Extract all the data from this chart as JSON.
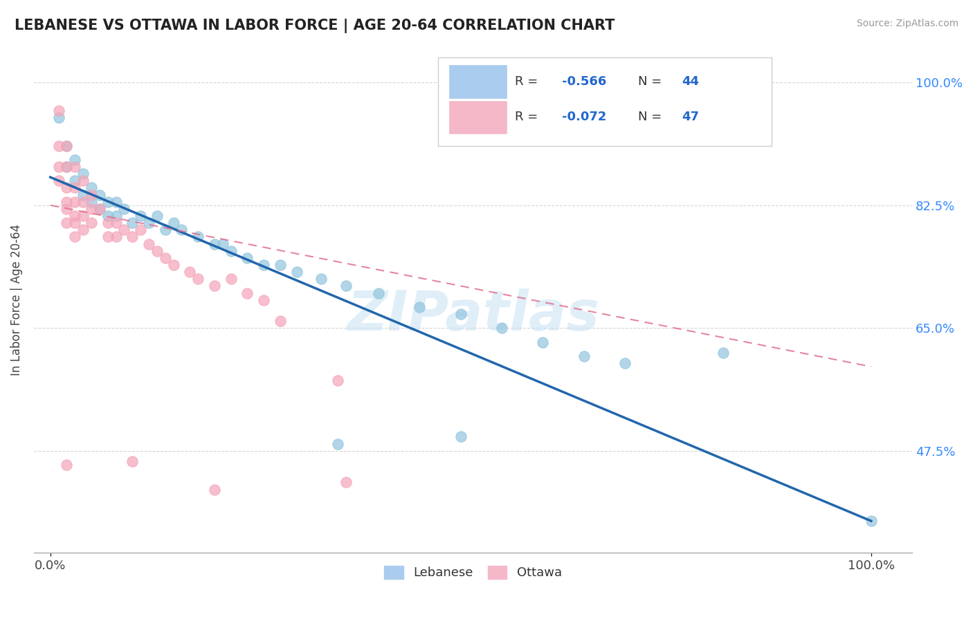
{
  "title": "LEBANESE VS OTTAWA IN LABOR FORCE | AGE 20-64 CORRELATION CHART",
  "source_text": "Source: ZipAtlas.com",
  "ylabel": "In Labor Force | Age 20-64",
  "legend_label_blue": "Lebanese",
  "legend_label_pink": "Ottawa",
  "blue_color": "#92c5de",
  "pink_color": "#f4a5b8",
  "blue_line_color": "#2166ac",
  "pink_line_color": "#e07090",
  "blue_scatter": [
    [
      0.01,
      0.95
    ],
    [
      0.02,
      0.91
    ],
    [
      0.02,
      0.88
    ],
    [
      0.03,
      0.89
    ],
    [
      0.03,
      0.86
    ],
    [
      0.04,
      0.87
    ],
    [
      0.04,
      0.84
    ],
    [
      0.05,
      0.85
    ],
    [
      0.05,
      0.83
    ],
    [
      0.06,
      0.84
    ],
    [
      0.06,
      0.82
    ],
    [
      0.07,
      0.83
    ],
    [
      0.07,
      0.81
    ],
    [
      0.08,
      0.83
    ],
    [
      0.08,
      0.81
    ],
    [
      0.09,
      0.82
    ],
    [
      0.1,
      0.8
    ],
    [
      0.11,
      0.81
    ],
    [
      0.12,
      0.8
    ],
    [
      0.13,
      0.81
    ],
    [
      0.14,
      0.79
    ],
    [
      0.15,
      0.8
    ],
    [
      0.16,
      0.79
    ],
    [
      0.18,
      0.78
    ],
    [
      0.2,
      0.77
    ],
    [
      0.21,
      0.77
    ],
    [
      0.22,
      0.76
    ],
    [
      0.24,
      0.75
    ],
    [
      0.26,
      0.74
    ],
    [
      0.28,
      0.74
    ],
    [
      0.3,
      0.73
    ],
    [
      0.33,
      0.72
    ],
    [
      0.36,
      0.71
    ],
    [
      0.4,
      0.7
    ],
    [
      0.45,
      0.68
    ],
    [
      0.5,
      0.67
    ],
    [
      0.55,
      0.65
    ],
    [
      0.6,
      0.63
    ],
    [
      0.65,
      0.61
    ],
    [
      0.7,
      0.6
    ],
    [
      0.82,
      0.615
    ],
    [
      0.35,
      0.485
    ],
    [
      0.5,
      0.495
    ],
    [
      1.0,
      0.375
    ]
  ],
  "pink_scatter": [
    [
      0.01,
      0.96
    ],
    [
      0.01,
      0.91
    ],
    [
      0.01,
      0.88
    ],
    [
      0.01,
      0.86
    ],
    [
      0.02,
      0.91
    ],
    [
      0.02,
      0.88
    ],
    [
      0.02,
      0.85
    ],
    [
      0.02,
      0.83
    ],
    [
      0.02,
      0.82
    ],
    [
      0.02,
      0.8
    ],
    [
      0.03,
      0.88
    ],
    [
      0.03,
      0.85
    ],
    [
      0.03,
      0.83
    ],
    [
      0.03,
      0.81
    ],
    [
      0.03,
      0.8
    ],
    [
      0.03,
      0.78
    ],
    [
      0.04,
      0.86
    ],
    [
      0.04,
      0.83
    ],
    [
      0.04,
      0.81
    ],
    [
      0.04,
      0.79
    ],
    [
      0.05,
      0.84
    ],
    [
      0.05,
      0.82
    ],
    [
      0.05,
      0.8
    ],
    [
      0.06,
      0.82
    ],
    [
      0.07,
      0.8
    ],
    [
      0.07,
      0.78
    ],
    [
      0.08,
      0.8
    ],
    [
      0.08,
      0.78
    ],
    [
      0.09,
      0.79
    ],
    [
      0.1,
      0.78
    ],
    [
      0.11,
      0.79
    ],
    [
      0.12,
      0.77
    ],
    [
      0.13,
      0.76
    ],
    [
      0.14,
      0.75
    ],
    [
      0.15,
      0.74
    ],
    [
      0.17,
      0.73
    ],
    [
      0.18,
      0.72
    ],
    [
      0.2,
      0.71
    ],
    [
      0.22,
      0.72
    ],
    [
      0.24,
      0.7
    ],
    [
      0.26,
      0.69
    ],
    [
      0.1,
      0.46
    ],
    [
      0.2,
      0.42
    ],
    [
      0.35,
      0.575
    ],
    [
      0.02,
      0.455
    ],
    [
      0.36,
      0.43
    ],
    [
      0.28,
      0.66
    ]
  ],
  "xlim": [
    -0.02,
    1.05
  ],
  "ylim": [
    0.33,
    1.05
  ],
  "ytick_vals": [
    0.475,
    0.65,
    0.825,
    1.0
  ],
  "ytick_labels": [
    "47.5%",
    "65.0%",
    "82.5%",
    "100.0%"
  ],
  "watermark": "ZIPatlas",
  "bg_color": "#ffffff",
  "grid_color": "#cccccc"
}
